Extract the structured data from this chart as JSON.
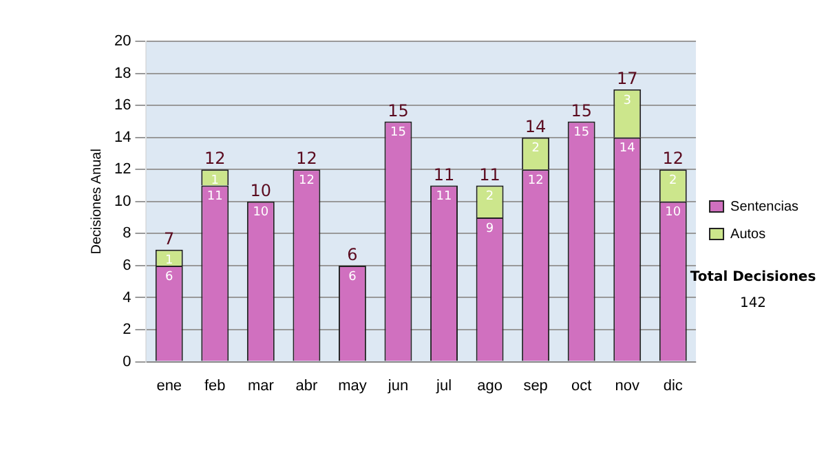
{
  "chart_data": {
    "type": "bar",
    "stacked": true,
    "ylabel": "Decisiones Anual",
    "categories": [
      "ene",
      "feb",
      "mar",
      "abr",
      "may",
      "jun",
      "jul",
      "ago",
      "sep",
      "oct",
      "nov",
      "dic"
    ],
    "series": [
      {
        "name": "Sentencias",
        "color": "#d070bf",
        "values": [
          6,
          11,
          10,
          12,
          6,
          15,
          11,
          9,
          12,
          15,
          14,
          10
        ]
      },
      {
        "name": "Autos",
        "color": "#cce68c",
        "values": [
          1,
          1,
          null,
          null,
          null,
          null,
          null,
          2,
          2,
          null,
          3,
          2
        ]
      }
    ],
    "totals": [
      "7",
      "12",
      "10",
      "12",
      "6",
      "15",
      "11",
      "11",
      "14",
      "15",
      "17",
      "12"
    ],
    "ylim": [
      0,
      20
    ],
    "yticks": [
      0,
      2,
      4,
      6,
      8,
      10,
      12,
      14,
      16,
      18,
      20
    ],
    "grid": "y",
    "legend": "right",
    "data_labels": true,
    "annotations": [
      "Total Decisiones",
      "142"
    ]
  }
}
